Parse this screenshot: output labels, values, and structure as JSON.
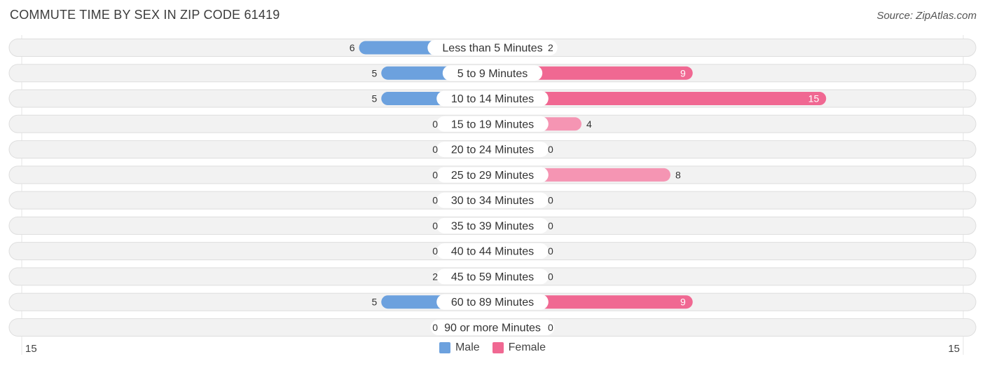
{
  "title": "COMMUTE TIME BY SEX IN ZIP CODE 61419",
  "source": "Source: ZipAtlas.com",
  "colors": {
    "male": "#6ca1de",
    "male_light": "#a8c8ec",
    "female": "#f06892",
    "female_light": "#f7a8c0"
  },
  "chart_data": {
    "type": "bar",
    "orientation": "horizontal-diverging",
    "categories": [
      "Less than 5 Minutes",
      "5 to 9 Minutes",
      "10 to 14 Minutes",
      "15 to 19 Minutes",
      "20 to 24 Minutes",
      "25 to 29 Minutes",
      "30 to 34 Minutes",
      "35 to 39 Minutes",
      "40 to 44 Minutes",
      "45 to 59 Minutes",
      "60 to 89 Minutes",
      "90 or more Minutes"
    ],
    "series": [
      {
        "name": "Male",
        "values": [
          6,
          5,
          5,
          0,
          0,
          0,
          0,
          0,
          0,
          2,
          5,
          0
        ]
      },
      {
        "name": "Female",
        "values": [
          2,
          9,
          15,
          4,
          0,
          8,
          0,
          0,
          0,
          0,
          9,
          0
        ]
      }
    ],
    "xlim": [
      -15,
      15
    ],
    "axis_left_label": "15",
    "axis_right_label": "15",
    "legend": [
      "Male",
      "Female"
    ],
    "legend_position": "bottom-center"
  }
}
